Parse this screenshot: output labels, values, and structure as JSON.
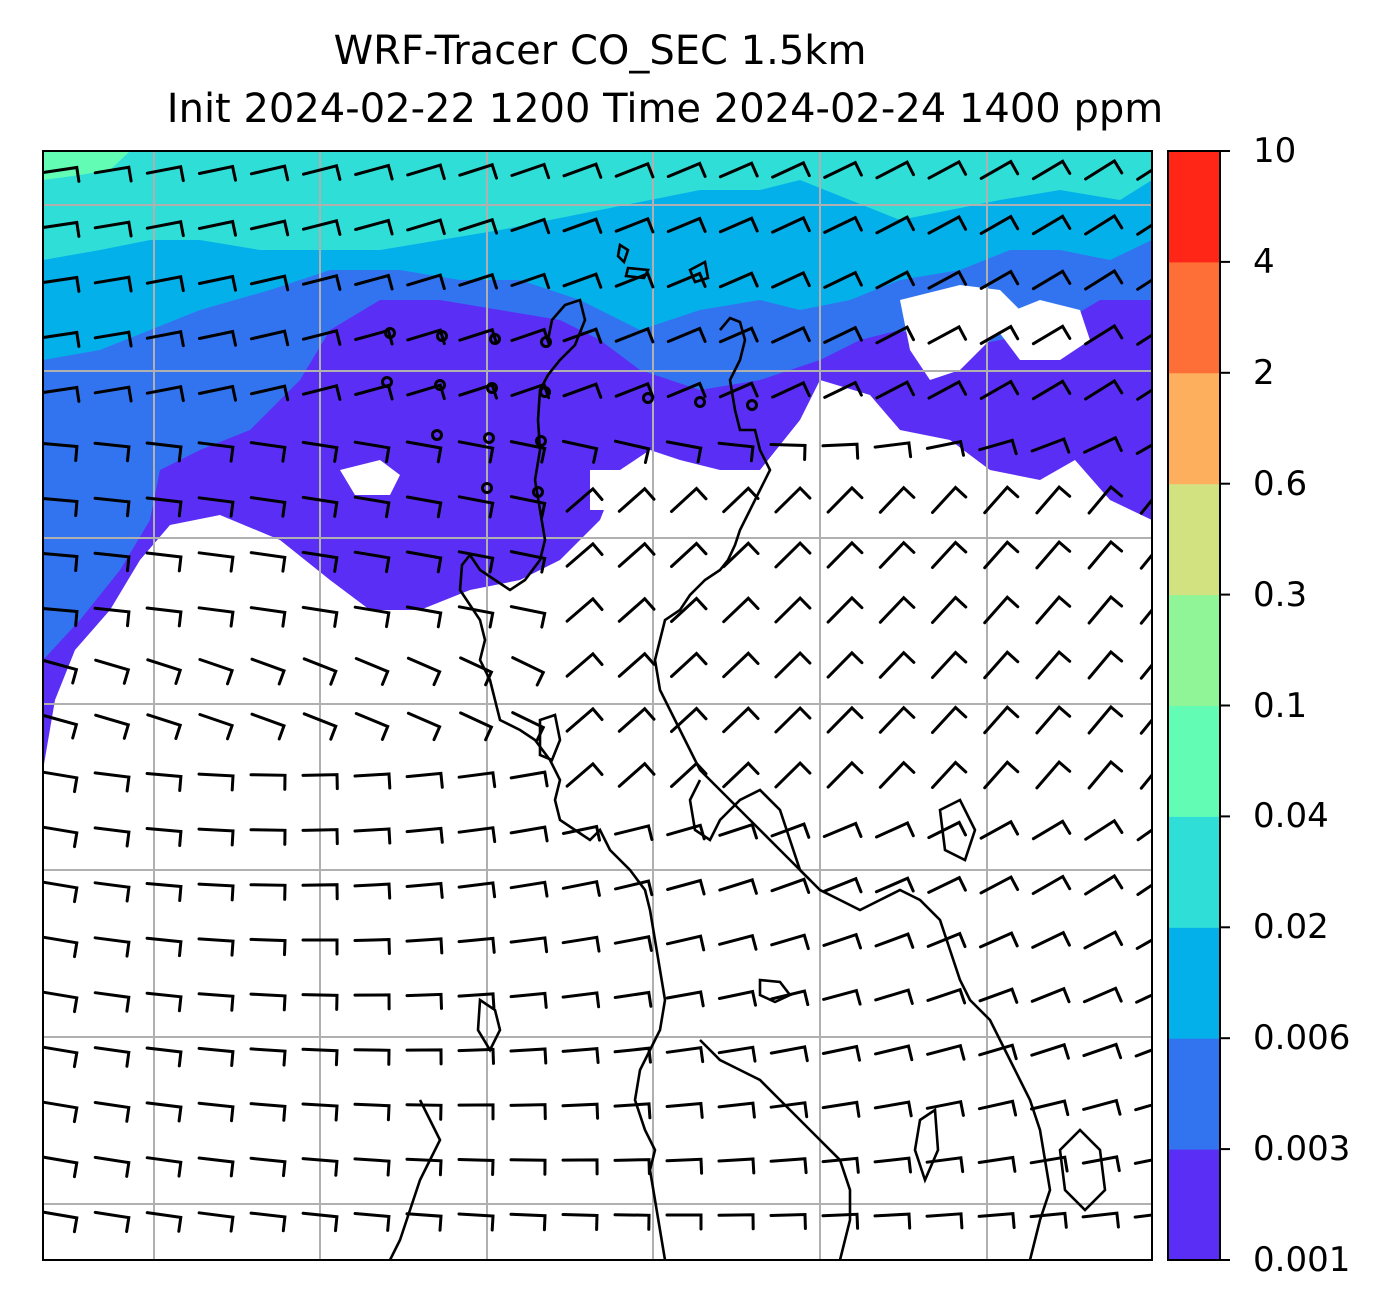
{
  "title": {
    "line1": "WRF-Tracer CO_SEC 1.5km",
    "line2": "Init 2024-02-22 1200 Time 2024-02-24 1400 ppm"
  },
  "colorbar": {
    "levels": [
      "0.001",
      "0.003",
      "0.006",
      "0.02",
      "0.04",
      "0.1",
      "0.3",
      "0.6",
      "2",
      "4",
      "10"
    ],
    "colors": [
      "#5b2ef5",
      "#3274f0",
      "#04b0ea",
      "#2fdfd7",
      "#62fcb5",
      "#8ff596",
      "#d3e280",
      "#feaf5e",
      "#fd6f37",
      "#ff2617"
    ]
  },
  "map": {
    "background": "#ffffff",
    "gridline_color": "#b0b0b0",
    "coastline_color": "#000000",
    "wind_barb_color": "#000000"
  }
}
